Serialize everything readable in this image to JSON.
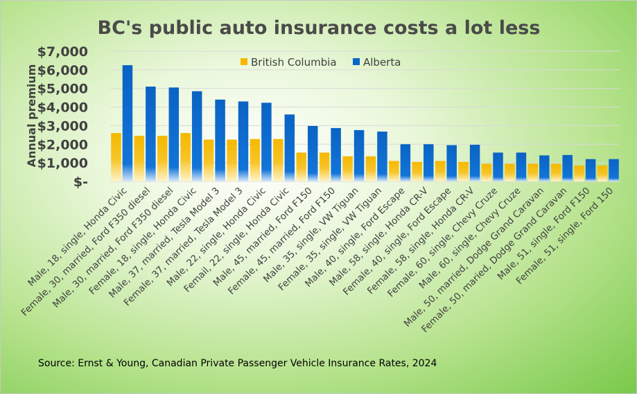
{
  "colors": {
    "british_columbia": "#f5b800",
    "alberta": "#0a66c8"
  },
  "source": "Source: Ernst & Young, Canadian Private Passenger Vehicle Insurance Rates, 2024",
  "chart_data": {
    "type": "bar",
    "title": "BC's public auto insurance costs a lot less",
    "xlabel": "",
    "ylabel": "Annual premium",
    "ylim": [
      0,
      7000
    ],
    "yticks": [
      0,
      1000,
      2000,
      3000,
      4000,
      5000,
      6000,
      7000
    ],
    "ytick_labels": [
      "$-",
      "$1,000",
      "$2,000",
      "$3,000",
      "$4,000",
      "$5,000",
      "$6,000",
      "$7,000"
    ],
    "grid": true,
    "legend_position": "top-center",
    "categories": [
      "Male, 18, single, Honda Civic",
      "Female, 30, married, Ford F350 diesel",
      "Male, 30, married, Ford F350 diesel",
      "Female, 18, single, Honda Civic",
      "Male, 37, married, Tesla Model 3",
      "Female, 37, married, Tesla Model 3",
      "Male, 22, single, Honda Civic",
      "Femail, 22, single, Honda Civic",
      "Male, 45, married, Ford F150",
      "Female, 45, married, Ford F150",
      "Male, 35, single, VW Tiguan",
      "Female, 35, single, VW Tiguan",
      "Male, 40, single, Ford Escape",
      "Male, 58, single, Honda CR-V",
      "Female, 40, single, Ford Escape",
      "Female, 58, single, Honda CR-V",
      "Female, 60, single, Chevy Cruze",
      "Male, 60, single, Chevy Cruze",
      "Male, 50, married, Dodge Grand Caravan",
      "Female, 50, maried, Dodge Grand Caravan",
      "Male, 51, single, Ford F150",
      "Female, 51, single, Ford 150"
    ],
    "series": [
      {
        "name": "British Columbia",
        "values": [
          2600,
          2450,
          2450,
          2600,
          2250,
          2250,
          2280,
          2280,
          1550,
          1550,
          1350,
          1350,
          1100,
          1050,
          1100,
          1050,
          950,
          950,
          950,
          950,
          850,
          850
        ]
      },
      {
        "name": "Alberta",
        "values": [
          6250,
          5100,
          5050,
          4850,
          4400,
          4300,
          4230,
          3600,
          2980,
          2870,
          2760,
          2680,
          2000,
          2000,
          1950,
          1970,
          1550,
          1550,
          1400,
          1420,
          1200,
          1200
        ]
      }
    ]
  }
}
